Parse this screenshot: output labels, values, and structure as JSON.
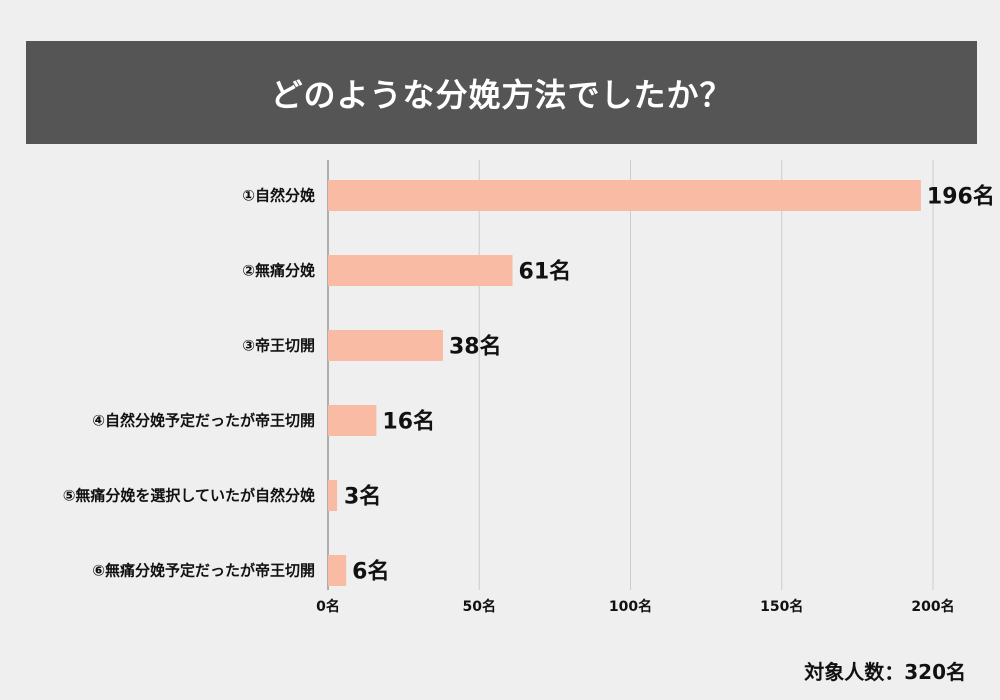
{
  "chart_data": {
    "type": "bar",
    "orientation": "horizontal",
    "title": "どのような分娩方法でしたか？",
    "categories": [
      "①自然分娩",
      "②無痛分娩",
      "③帝王切開",
      "④自然分娩予定だったが帝王切開",
      "⑤無痛分娩を選択していたが自然分娩",
      "⑥無痛分娩予定だったが帝王切開"
    ],
    "values": [
      196,
      61,
      38,
      16,
      3,
      6
    ],
    "value_labels": [
      "196名",
      "61名",
      "38名",
      "16名",
      "3名",
      "6名"
    ],
    "xlim": [
      0,
      200
    ],
    "x_ticks": [
      0,
      50,
      100,
      150,
      200
    ],
    "x_tick_labels": [
      "0名",
      "50名",
      "100名",
      "150名",
      "200名"
    ],
    "grid": true,
    "bar_color": "#f9bba4",
    "grid_color": "#cccccc"
  },
  "footer": {
    "note": "対象人数：320名"
  },
  "colors": {
    "background": "#efefef",
    "title_bar": "#555555",
    "title_text": "#ffffff"
  }
}
